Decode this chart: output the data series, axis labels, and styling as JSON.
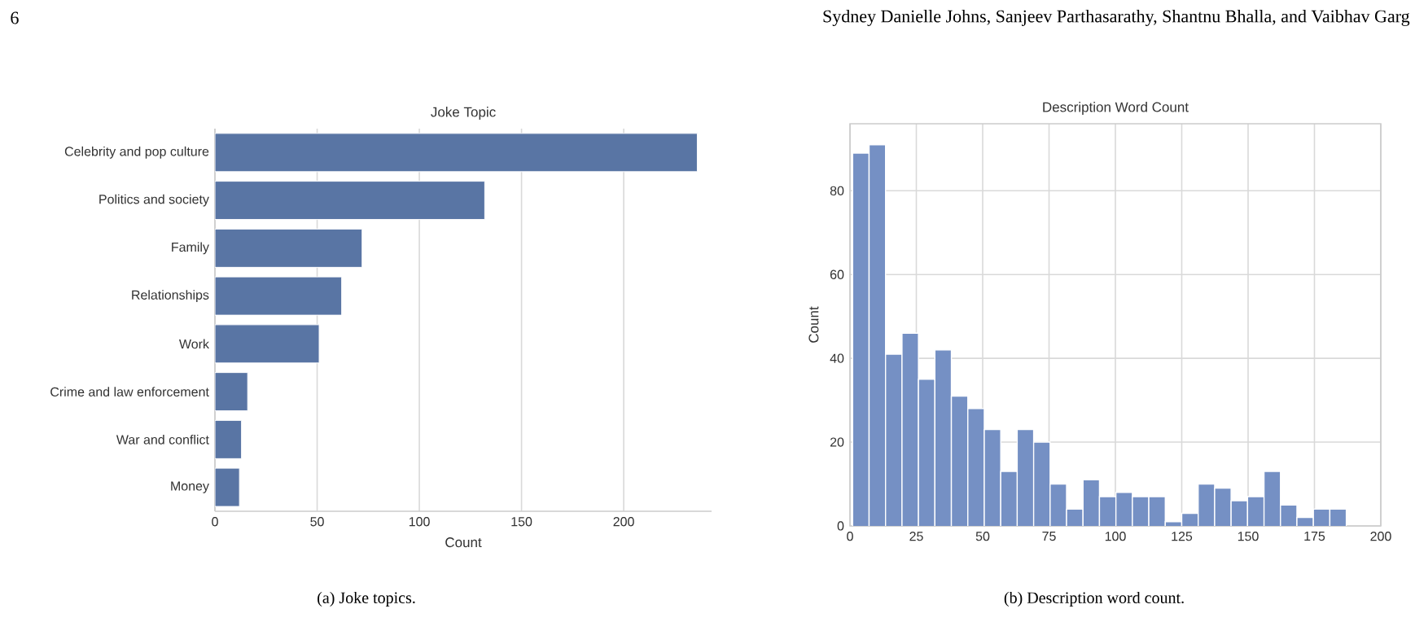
{
  "chart_data": [
    {
      "type": "bar",
      "orientation": "horizontal",
      "title": "Joke Topic",
      "xlabel": "Count",
      "categories": [
        "Celebrity and pop culture",
        "Politics and society",
        "Family",
        "Relationships",
        "Work",
        "Crime and law enforcement",
        "War and conflict",
        "Money"
      ],
      "values": [
        236,
        132,
        72,
        62,
        51,
        16,
        13,
        12
      ],
      "color": "#5975a4",
      "xlim": [
        0,
        243
      ],
      "xticks": [
        0,
        50,
        100,
        150,
        200
      ],
      "grid": "x",
      "annotations": [
        "6",
        "Sydney Danielle Johns, Sanjeev Parthasarathy, Shantnu Bhalla, and Vaibhav Garg",
        "(a) Joke topics."
      ]
    },
    {
      "type": "histogram",
      "title": "Description Word Count",
      "ylabel": "Count",
      "bins": [
        1,
        7.2,
        13.4,
        19.6,
        25.8,
        32,
        38.2,
        44.4,
        50.6,
        56.8,
        63,
        69.2,
        75.4,
        81.6,
        87.8,
        94,
        100.2,
        106.4,
        112.6,
        118.8,
        125,
        131.2,
        137.4,
        143.6,
        149.8,
        156,
        162.2,
        168.4,
        174.6,
        180.8,
        187
      ],
      "values": [
        89,
        91,
        41,
        46,
        35,
        42,
        31,
        28,
        23,
        13,
        23,
        20,
        10,
        4,
        11,
        7,
        8,
        7,
        7,
        1,
        3,
        10,
        9,
        6,
        7,
        13,
        5,
        2,
        4,
        4
      ],
      "color": "#7590c4",
      "xlim": [
        0,
        200
      ],
      "ylim": [
        0,
        96
      ],
      "xticks": [
        0,
        25,
        50,
        75,
        100,
        125,
        150,
        175,
        200
      ],
      "yticks": [
        0,
        20,
        40,
        60,
        80
      ],
      "grid": true,
      "annotations": [
        "(b) Description word count."
      ]
    }
  ]
}
